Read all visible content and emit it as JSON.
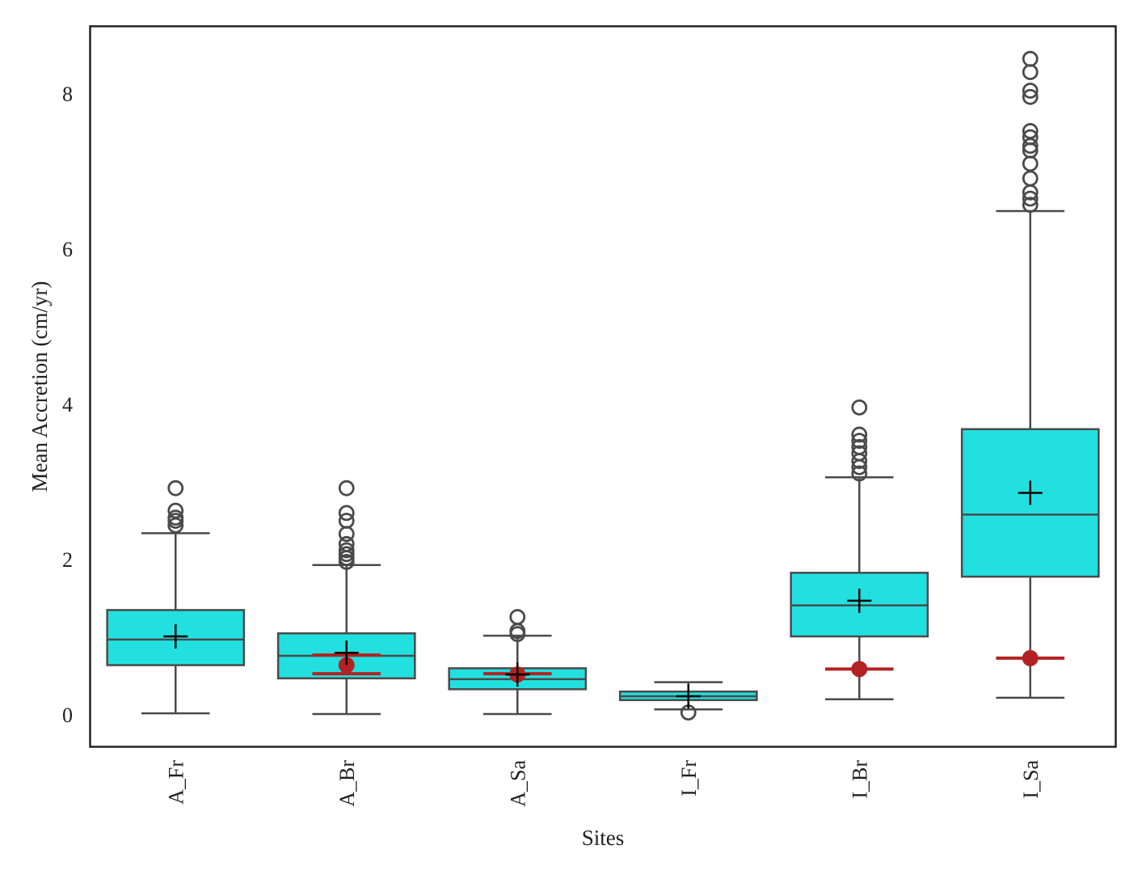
{
  "chart_data": {
    "type": "box",
    "title": "",
    "xlabel": "Sites",
    "ylabel": "Mean Accretion (cm/yr)",
    "ylim": [
      -0.4,
      8.85
    ],
    "yticks": [
      0,
      2,
      4,
      6,
      8
    ],
    "grid": false,
    "legend": "none",
    "colors": {
      "box_fill": "#22e0e0",
      "box_edge": "#4a4a4a",
      "mean_marker": "#000000",
      "reference": "#b22222"
    },
    "categories": [
      "A_Fr",
      "A_Br",
      "A_Sa",
      "I_Fr",
      "I_Br",
      "I_Sa"
    ],
    "boxes": [
      {
        "site": "A_Fr",
        "whisker_low": 0.02,
        "q1": 0.64,
        "median": 0.97,
        "q3": 1.35,
        "whisker_high": 2.34,
        "mean": 1.01,
        "outliers": [
          2.44,
          2.5,
          2.54,
          2.63,
          2.92
        ],
        "reference": null
      },
      {
        "site": "A_Br",
        "whisker_low": 0.01,
        "q1": 0.47,
        "median": 0.76,
        "q3": 1.05,
        "whisker_high": 1.93,
        "mean": 0.8,
        "outliers": [
          1.97,
          2.02,
          2.07,
          2.12,
          2.2,
          2.33,
          2.5,
          2.6,
          2.92
        ],
        "reference": {
          "value": 0.64,
          "low": 0.53,
          "high": 0.77
        }
      },
      {
        "site": "A_Sa",
        "whisker_low": 0.01,
        "q1": 0.33,
        "median": 0.46,
        "q3": 0.6,
        "whisker_high": 1.02,
        "mean": 0.52,
        "outliers": [
          1.04,
          1.08,
          1.26
        ],
        "reference": {
          "value": 0.52,
          "low": 0.53,
          "high": 0.53
        }
      },
      {
        "site": "I_Fr",
        "whisker_low": 0.07,
        "q1": 0.19,
        "median": 0.24,
        "q3": 0.3,
        "whisker_high": 0.42,
        "mean": 0.24,
        "outliers": [
          0.03
        ],
        "reference": null
      },
      {
        "site": "I_Br",
        "whisker_low": 0.2,
        "q1": 1.01,
        "median": 1.41,
        "q3": 1.83,
        "whisker_high": 3.06,
        "mean": 1.47,
        "outliers": [
          3.11,
          3.19,
          3.27,
          3.37,
          3.45,
          3.53,
          3.61,
          3.96
        ],
        "reference": {
          "value": 0.59,
          "low": 0.59,
          "high": 0.59
        }
      },
      {
        "site": "I_Sa",
        "whisker_low": 0.22,
        "q1": 1.78,
        "median": 2.58,
        "q3": 3.68,
        "whisker_high": 6.49,
        "mean": 2.86,
        "outliers": [
          6.57,
          6.65,
          6.73,
          6.91,
          7.1,
          7.27,
          7.33,
          7.44,
          7.52,
          7.96,
          8.04,
          8.28,
          8.45
        ],
        "reference": {
          "value": 0.73,
          "low": 0.73,
          "high": 0.73
        }
      }
    ]
  }
}
